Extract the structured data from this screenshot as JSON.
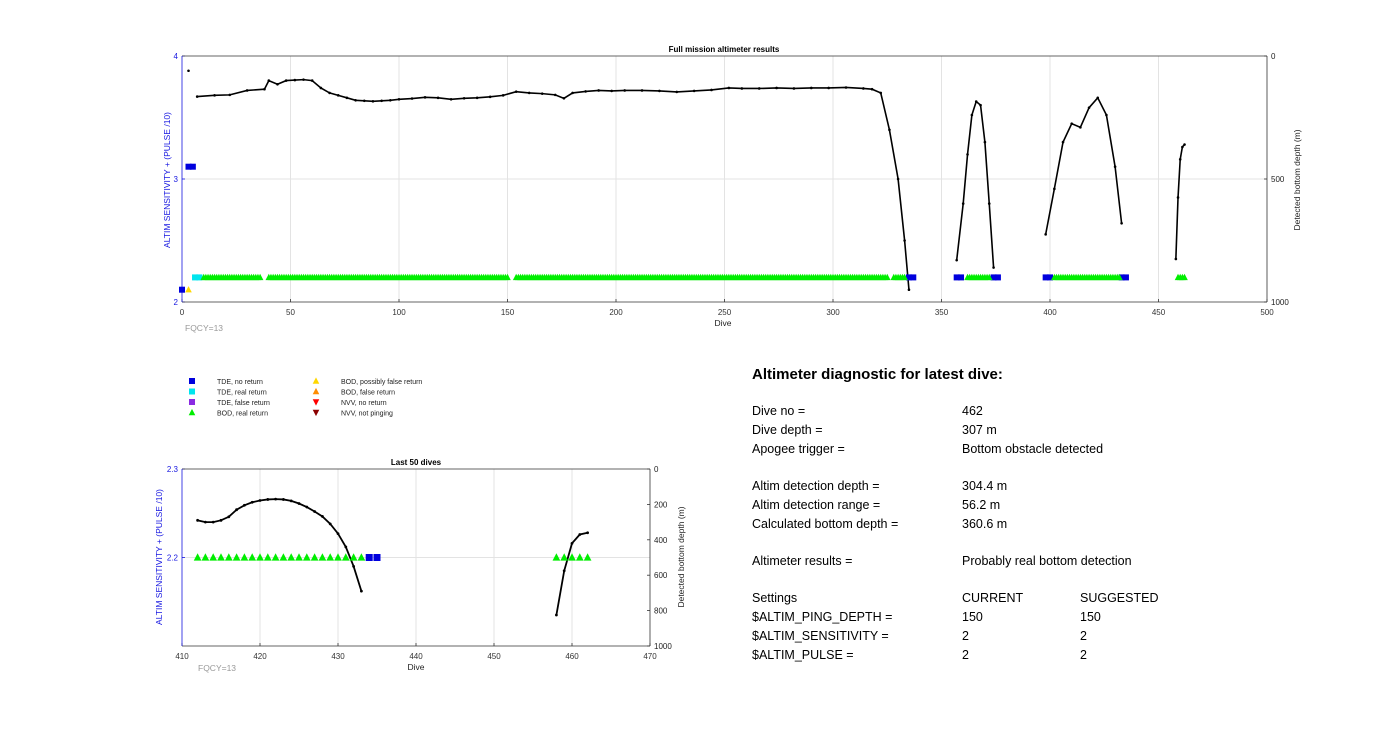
{
  "top_chart": {
    "title": "Full mission altimeter results",
    "xlabel": "Dive",
    "ylabel_left": "ALTIM SENSITIVITY + (PULSE /10)",
    "ylabel_right": "Detected bottom depth (m)",
    "footnote": "FQCY=13",
    "x_ticks": [
      "0",
      "50",
      "100",
      "150",
      "200",
      "250",
      "300",
      "350",
      "400",
      "450",
      "500"
    ],
    "y_left_ticks": [
      "2",
      "3",
      "4"
    ],
    "y_right_ticks": [
      "0",
      "500",
      "1000"
    ]
  },
  "bottom_chart": {
    "title": "Last 50 dives",
    "xlabel": "Dive",
    "ylabel_left": "ALTIM SENSITIVITY + (PULSE /10)",
    "ylabel_right": "Detected bottom depth (m)",
    "footnote": "FQCY=13",
    "x_ticks": [
      "410",
      "420",
      "430",
      "440",
      "450",
      "460",
      "470"
    ],
    "y_left_ticks": [
      "2.2",
      "2.3"
    ],
    "y_right_ticks": [
      "0",
      "200",
      "400",
      "600",
      "800",
      "1000"
    ]
  },
  "legend": {
    "items": [
      {
        "label": "TDE, no return",
        "marker": "square",
        "color": "#0000dd"
      },
      {
        "label": "TDE, real return",
        "marker": "square",
        "color": "#00e5ee"
      },
      {
        "label": "TDE, false return",
        "marker": "square",
        "color": "#8a2be2"
      },
      {
        "label": "BOD, real return",
        "marker": "triangle-up",
        "color": "#00ee00"
      },
      {
        "label": "BOD, possibly false return",
        "marker": "triangle-up",
        "color": "#ffd700"
      },
      {
        "label": "BOD, false return",
        "marker": "triangle-up",
        "color": "#ff8c00"
      },
      {
        "label": "NVV, no return",
        "marker": "triangle-down",
        "color": "#ff0000"
      },
      {
        "label": "NVV, not pinging",
        "marker": "triangle-down",
        "color": "#8b0000"
      }
    ]
  },
  "diagnostic": {
    "title": "Altimeter diagnostic for latest dive:",
    "dive_no_label": "Dive no =",
    "dive_no": "462",
    "dive_depth_label": "Dive depth =",
    "dive_depth": "307 m",
    "apogee_label": "Apogee trigger =",
    "apogee": "Bottom obstacle detected",
    "det_depth_label": "Altim detection depth =",
    "det_depth": "304.4 m",
    "det_range_label": "Altim detection range =",
    "det_range": "56.2 m",
    "calc_depth_label": "Calculated bottom depth =",
    "calc_depth": "360.6 m",
    "results_label": "Altimeter results =",
    "results": "Probably real bottom detection",
    "settings_label": "Settings",
    "current_label": "CURRENT",
    "suggested_label": "SUGGESTED",
    "settings": [
      {
        "name": "$ALTIM_PING_DEPTH =",
        "current": "150",
        "suggested": "150"
      },
      {
        "name": "$ALTIM_SENSITIVITY =",
        "current": "2",
        "suggested": "2"
      },
      {
        "name": "$ALTIM_PULSE =",
        "current": "2",
        "suggested": "2"
      }
    ]
  },
  "chart_data": [
    {
      "type": "line",
      "title": "Full mission altimeter results",
      "xlabel": "Dive",
      "ylabel": "ALTIM SENSITIVITY + (PULSE /10)",
      "y2label": "Detected bottom depth (m)",
      "xlim": [
        0,
        500
      ],
      "ylim": [
        2,
        4
      ],
      "y2lim": [
        1000,
        0
      ],
      "grid": true,
      "series": [
        {
          "name": "Detected bottom depth (m)",
          "axis": "right",
          "segments": [
            {
              "x": [
                3
              ],
              "y": [
                60
              ]
            },
            {
              "x": [
                7,
                15,
                22,
                30,
                38,
                40,
                44,
                48,
                52,
                56,
                60,
                64,
                68,
                72,
                76,
                80,
                84,
                88,
                92,
                96,
                100,
                106,
                112,
                118,
                124,
                130,
                136,
                142,
                148,
                154,
                160,
                166,
                172,
                176,
                180,
                186,
                192,
                198,
                204,
                212,
                220,
                228,
                236,
                244,
                252,
                258,
                266,
                274,
                282,
                290,
                298,
                306,
                314,
                318,
                322,
                326,
                330,
                333,
                335
              ],
              "y": [
                165,
                160,
                158,
                140,
                135,
                100,
                115,
                100,
                98,
                96,
                100,
                130,
                150,
                160,
                170,
                180,
                182,
                184,
                182,
                180,
                176,
                173,
                168,
                170,
                176,
                172,
                170,
                166,
                160,
                145,
                150,
                153,
                158,
                172,
                150,
                144,
                140,
                142,
                140,
                140,
                142,
                146,
                142,
                138,
                130,
                132,
                132,
                130,
                132,
                130,
                130,
                128,
                132,
                135,
                150,
                300,
                500,
                750,
                950
              ]
            },
            {
              "x": [
                357,
                360,
                362,
                364,
                366,
                368,
                370,
                372,
                374
              ],
              "y": [
                830,
                600,
                400,
                240,
                185,
                200,
                350,
                600,
                860
              ]
            },
            {
              "x": [
                398,
                402,
                406,
                410,
                414,
                418,
                422,
                426,
                430,
                433
              ],
              "y": [
                725,
                540,
                350,
                275,
                290,
                210,
                170,
                240,
                450,
                680
              ]
            },
            {
              "x": [
                458,
                459,
                460,
                461,
                462
              ],
              "y": [
                825,
                575,
                420,
                370,
                360
              ]
            }
          ]
        },
        {
          "name": "TDE, no return",
          "marker": "square",
          "axis": "left",
          "points": [
            [
              0,
              2.1
            ],
            [
              3,
              3.1
            ],
            [
              5,
              3.1
            ],
            [
              335,
              2.2
            ],
            [
              337,
              2.2
            ],
            [
              357,
              2.2
            ],
            [
              359,
              2.2
            ],
            [
              374,
              2.2
            ],
            [
              376,
              2.2
            ],
            [
              398,
              2.2
            ],
            [
              400,
              2.2
            ],
            [
              433,
              2.2
            ],
            [
              435,
              2.2
            ]
          ]
        },
        {
          "name": "TDE, real return",
          "marker": "square",
          "axis": "left",
          "points": [
            [
              6,
              2.2
            ],
            [
              8,
              2.2
            ]
          ]
        },
        {
          "name": "BOD, real return",
          "marker": "triangle-up",
          "axis": "left",
          "ranges": [
            [
              10,
              36
            ],
            [
              40,
              150
            ],
            [
              154,
              325
            ],
            [
              328,
              333
            ],
            [
              362,
              372
            ],
            [
              402,
              432
            ],
            [
              459,
              462
            ]
          ],
          "y": 2.2
        },
        {
          "name": "BOD, possibly false return",
          "marker": "triangle-up",
          "axis": "left",
          "points": [
            [
              3,
              2.1
            ]
          ]
        }
      ]
    },
    {
      "type": "line",
      "title": "Last 50 dives",
      "xlabel": "Dive",
      "ylabel": "ALTIM SENSITIVITY + (PULSE /10)",
      "y2label": "Detected bottom depth (m)",
      "xlim": [
        410,
        470
      ],
      "ylim": [
        2.1,
        2.3
      ],
      "y2lim": [
        1000,
        0
      ],
      "grid": true,
      "series": [
        {
          "name": "Detected bottom depth (m)",
          "axis": "right",
          "segments": [
            {
              "x": [
                412,
                413,
                414,
                415,
                416,
                417,
                418,
                419,
                420,
                421,
                422,
                423,
                424,
                425,
                426,
                427,
                428,
                429,
                430,
                431,
                432,
                433
              ],
              "y": [
                290,
                300,
                300,
                290,
                270,
                230,
                205,
                188,
                178,
                172,
                170,
                172,
                180,
                195,
                215,
                240,
                268,
                310,
                365,
                440,
                550,
                690
              ]
            },
            {
              "x": [
                458,
                459,
                460,
                461,
                462
              ],
              "y": [
                825,
                575,
                420,
                370,
                360
              ]
            }
          ]
        },
        {
          "name": "BOD, real return",
          "marker": "triangle-up",
          "axis": "left",
          "x": [
            412,
            413,
            414,
            415,
            416,
            417,
            418,
            419,
            420,
            421,
            422,
            423,
            424,
            425,
            426,
            427,
            428,
            429,
            430,
            431,
            432,
            433,
            458,
            459,
            460,
            461,
            462
          ],
          "y": 2.2
        },
        {
          "name": "TDE, no return",
          "marker": "square",
          "axis": "left",
          "x": [
            434,
            435
          ],
          "y": 2.2
        }
      ]
    }
  ]
}
